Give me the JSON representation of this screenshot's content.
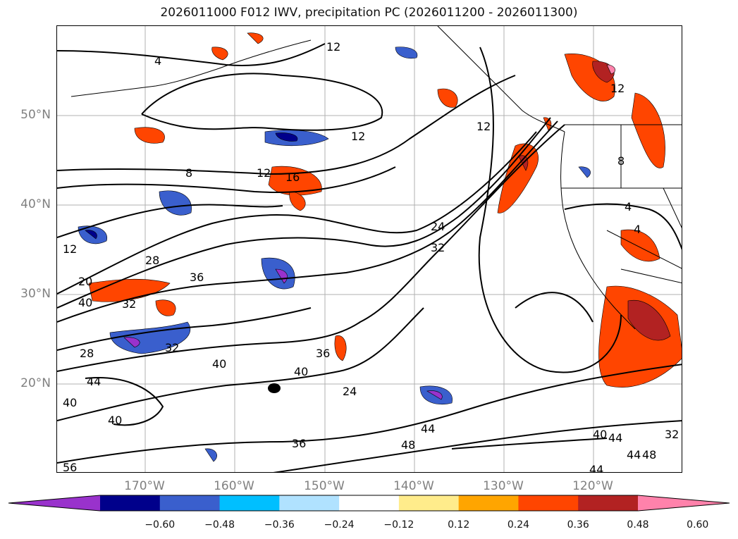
{
  "title": "2026011000 F012 IWV, precipitation PC (2026011200 - 2026011300)",
  "map": {
    "lat_labels": [
      "50°N",
      "40°N",
      "30°N",
      "20°N"
    ],
    "lon_labels": [
      "170°W",
      "160°W",
      "150°W",
      "140°W",
      "130°W",
      "120°W"
    ],
    "contour_labels": [
      "4",
      "12",
      "12",
      "8",
      "12",
      "16",
      "12",
      "12",
      "8",
      "4",
      "4",
      "12",
      "28",
      "36",
      "20",
      "40",
      "32",
      "24",
      "32",
      "28",
      "32",
      "36",
      "40",
      "40",
      "24",
      "44",
      "40",
      "40",
      "36",
      "48",
      "44",
      "40",
      "44",
      "32",
      "44",
      "48",
      "44",
      "56"
    ]
  },
  "colorbar": {
    "ticks": [
      "−0.60",
      "−0.48",
      "−0.36",
      "−0.24",
      "−0.12",
      "0.12",
      "0.24",
      "0.36",
      "0.48",
      "0.60"
    ],
    "colors": [
      "#9932cc",
      "#00008b",
      "#3a5fcd",
      "#00bfff",
      "#b0e2ff",
      "#ffffff",
      "#ffec8b",
      "#ffa500",
      "#ff4500",
      "#b22222",
      "#ff82ab"
    ]
  }
}
